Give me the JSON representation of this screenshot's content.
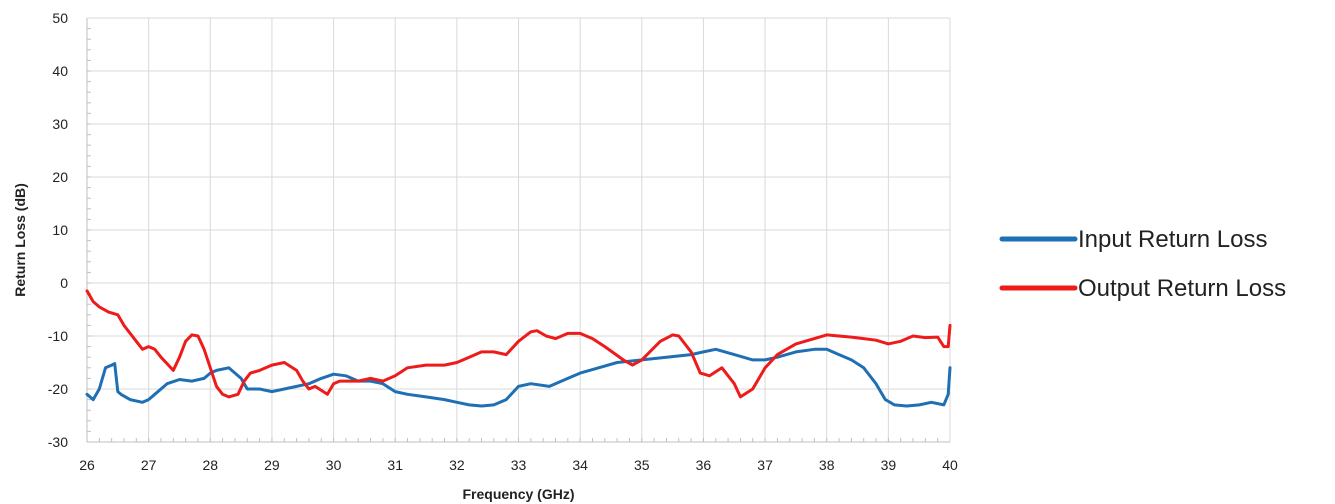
{
  "chart_data": {
    "type": "line",
    "title": "",
    "xlabel": "Frequency (GHz)",
    "ylabel": "Return Loss (dB)",
    "xlim": [
      26,
      40
    ],
    "ylim": [
      -30,
      50
    ],
    "x_ticks": [
      26,
      27,
      28,
      29,
      30,
      31,
      32,
      33,
      34,
      35,
      36,
      37,
      38,
      39,
      40
    ],
    "y_ticks": [
      -30,
      -20,
      -10,
      0,
      10,
      20,
      30,
      40,
      50
    ],
    "grid": true,
    "legend_position": "right",
    "series": [
      {
        "name": "Input Return Loss",
        "color": "#1f6fb5",
        "x": [
          26.0,
          26.1,
          26.2,
          26.3,
          26.4,
          26.45,
          26.5,
          26.55,
          26.7,
          26.9,
          27.0,
          27.1,
          27.3,
          27.5,
          27.7,
          27.9,
          28.0,
          28.1,
          28.3,
          28.5,
          28.6,
          28.8,
          29.0,
          29.2,
          29.4,
          29.6,
          29.8,
          30.0,
          30.2,
          30.4,
          30.6,
          30.8,
          31.0,
          31.2,
          31.5,
          31.8,
          32.0,
          32.2,
          32.4,
          32.6,
          32.8,
          33.0,
          33.2,
          33.5,
          33.8,
          34.0,
          34.3,
          34.6,
          35.0,
          35.4,
          35.8,
          36.0,
          36.2,
          36.5,
          36.8,
          37.0,
          37.2,
          37.5,
          37.8,
          38.0,
          38.2,
          38.4,
          38.6,
          38.8,
          38.95,
          39.1,
          39.3,
          39.5,
          39.7,
          39.9,
          39.97,
          40.0
        ],
        "y": [
          -21,
          -22,
          -20,
          -16,
          -15.5,
          -15.2,
          -20.5,
          -21,
          -22,
          -22.5,
          -22,
          -21,
          -19,
          -18.2,
          -18.5,
          -18,
          -17,
          -16.5,
          -16,
          -18,
          -20,
          -20,
          -20.5,
          -20,
          -19.5,
          -19,
          -18,
          -17.2,
          -17.5,
          -18.5,
          -18.5,
          -19,
          -20.5,
          -21,
          -21.5,
          -22,
          -22.5,
          -23,
          -23.2,
          -23,
          -22,
          -19.5,
          -19,
          -19.5,
          -18,
          -17,
          -16,
          -15,
          -14.5,
          -14,
          -13.5,
          -13,
          -12.5,
          -13.5,
          -14.5,
          -14.5,
          -14,
          -13,
          -12.5,
          -12.5,
          -13.5,
          -14.5,
          -16,
          -19,
          -22,
          -23,
          -23.2,
          -23,
          -22.5,
          -23,
          -21,
          -16
        ]
      },
      {
        "name": "Output Return Loss",
        "color": "#ee1b1b",
        "x": [
          26.0,
          26.1,
          26.2,
          26.35,
          26.5,
          26.6,
          26.8,
          26.9,
          27.0,
          27.1,
          27.2,
          27.4,
          27.5,
          27.6,
          27.7,
          27.8,
          27.9,
          28.0,
          28.1,
          28.2,
          28.3,
          28.45,
          28.55,
          28.65,
          28.8,
          29.0,
          29.2,
          29.4,
          29.5,
          29.6,
          29.7,
          29.9,
          30.0,
          30.1,
          30.4,
          30.6,
          30.8,
          31.0,
          31.2,
          31.5,
          31.8,
          32.0,
          32.2,
          32.4,
          32.6,
          32.8,
          33.0,
          33.2,
          33.3,
          33.45,
          33.6,
          33.8,
          34.0,
          34.2,
          34.4,
          34.7,
          34.85,
          35.0,
          35.3,
          35.5,
          35.6,
          35.8,
          35.95,
          36.1,
          36.3,
          36.5,
          36.6,
          36.8,
          37.0,
          37.2,
          37.5,
          37.8,
          38.0,
          38.2,
          38.4,
          38.6,
          38.8,
          39.0,
          39.2,
          39.4,
          39.6,
          39.8,
          39.9,
          39.97,
          40.0
        ],
        "y": [
          -1.5,
          -3.5,
          -4.5,
          -5.5,
          -6,
          -8,
          -11,
          -12.5,
          -12,
          -12.5,
          -14,
          -16.5,
          -14,
          -11,
          -9.8,
          -10,
          -12.5,
          -16,
          -19.5,
          -21,
          -21.5,
          -21,
          -18.5,
          -17,
          -16.5,
          -15.5,
          -15,
          -16.5,
          -18.5,
          -20,
          -19.5,
          -21,
          -19,
          -18.5,
          -18.5,
          -18,
          -18.5,
          -17.5,
          -16,
          -15.5,
          -15.5,
          -15,
          -14,
          -13,
          -13,
          -13.5,
          -11,
          -9.2,
          -9,
          -10,
          -10.5,
          -9.5,
          -9.5,
          -10.5,
          -12,
          -14.5,
          -15.5,
          -14.5,
          -11,
          -9.8,
          -10,
          -13,
          -17,
          -17.5,
          -16,
          -19,
          -21.5,
          -20,
          -16,
          -13.5,
          -11.5,
          -10.5,
          -9.8,
          -10,
          -10.2,
          -10.5,
          -10.8,
          -11.5,
          -11,
          -10,
          -10.3,
          -10.2,
          -12,
          -12,
          -8
        ]
      }
    ]
  }
}
